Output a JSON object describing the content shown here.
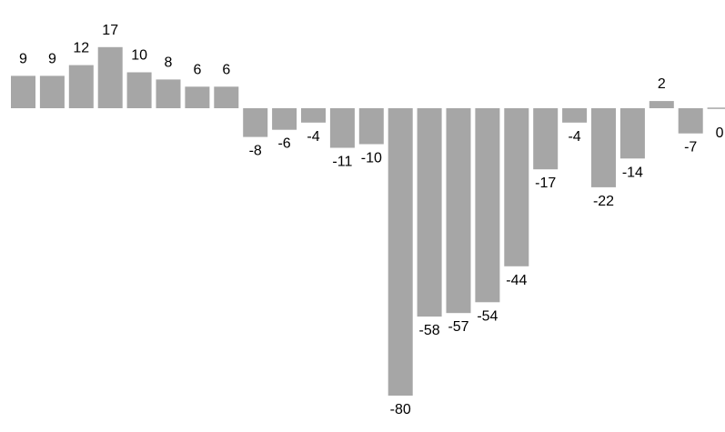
{
  "chart_data": {
    "type": "bar",
    "title": "",
    "xlabel": "",
    "ylabel": "",
    "ylim": [
      -80,
      17
    ],
    "grid": false,
    "legend": "none",
    "bar_color": "#a6a6a6",
    "values": [
      9,
      9,
      12,
      17,
      10,
      8,
      6,
      6,
      -8,
      -6,
      -4,
      -11,
      -10,
      -80,
      -58,
      -57,
      -54,
      -44,
      -17,
      -4,
      -22,
      -14,
      2,
      -7,
      0
    ],
    "data_labels": [
      "9",
      "9",
      "12",
      "17",
      "10",
      "8",
      "6",
      "6",
      "-8",
      "-6",
      "-4",
      "-11",
      "-10",
      "-80",
      "-58",
      "-57",
      "-54",
      "-44",
      "-17",
      "-4",
      "-22",
      "-14",
      "2",
      "-7",
      "0"
    ]
  }
}
